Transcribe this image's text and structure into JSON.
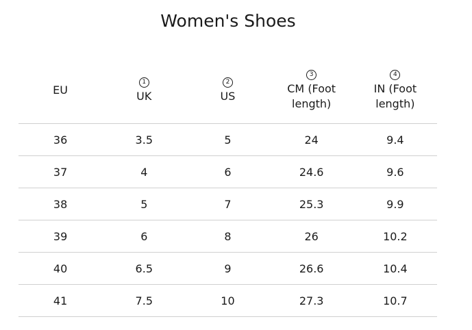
{
  "title": "Women's Shoes",
  "table": {
    "headers": [
      {
        "label": "EU"
      },
      {
        "marker": "1",
        "label": "UK"
      },
      {
        "marker": "2",
        "label": "US"
      },
      {
        "marker": "3",
        "label": "CM (Foot length)"
      },
      {
        "marker": "4",
        "label": "IN (Foot length)"
      }
    ],
    "rows": [
      [
        "36",
        "3.5",
        "5",
        "24",
        "9.4"
      ],
      [
        "37",
        "4",
        "6",
        "24.6",
        "9.6"
      ],
      [
        "38",
        "5",
        "7",
        "25.3",
        "9.9"
      ],
      [
        "39",
        "6",
        "8",
        "26",
        "10.2"
      ],
      [
        "40",
        "6.5",
        "9",
        "26.6",
        "10.4"
      ],
      [
        "41",
        "7.5",
        "10",
        "27.3",
        "10.7"
      ]
    ]
  }
}
